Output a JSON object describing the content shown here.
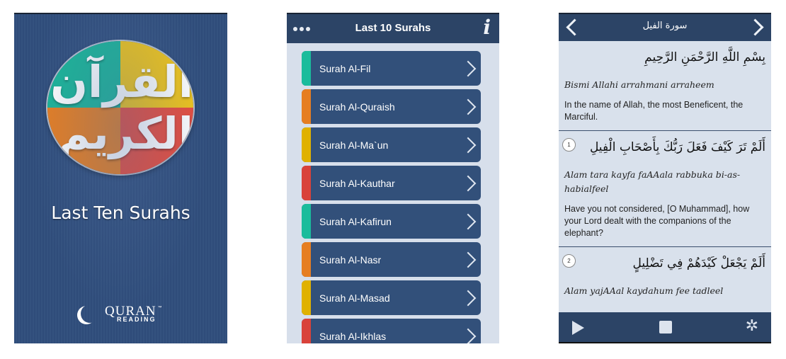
{
  "splash": {
    "title": "Last Ten Surahs",
    "logo_calligraphy": "القرآن الكريم",
    "logo_colors": {
      "top_left": "#1bb497",
      "top_right": "#f0c419",
      "bottom_left": "#e67e22",
      "bottom_right": "#e74c3c"
    },
    "brand": {
      "name": "QURAN",
      "sub": "READING",
      "tm": "™"
    }
  },
  "list_screen": {
    "header": {
      "title": "Last 10 Surahs",
      "menu_icon": "more-dots-icon",
      "info_icon": "info-icon",
      "info_glyph": "i"
    },
    "items": [
      {
        "label": "Surah Al-Fil",
        "color": "#1abc9c"
      },
      {
        "label": "Surah Al-Quraish",
        "color": "#e67e22"
      },
      {
        "label": "Surah Al-Ma`un",
        "color": "#e0b100"
      },
      {
        "label": "Surah Al-Kauthar",
        "color": "#d9423a"
      },
      {
        "label": "Surah Al-Kafirun",
        "color": "#1abc9c"
      },
      {
        "label": "Surah Al-Nasr",
        "color": "#e67e22"
      },
      {
        "label": "Surah Al-Masad",
        "color": "#e0b100"
      },
      {
        "label": "Surah Al-Ikhlas",
        "color": "#d9423a"
      }
    ]
  },
  "reader": {
    "header": {
      "title": "سورة الفيل",
      "prev_icon": "chevron-left-icon",
      "next_icon": "chevron-right-icon"
    },
    "verses": [
      {
        "number": "",
        "arabic": "بِسْمِ اللَّهِ الرَّحْمَنِ الرَّحِيمِ",
        "translit": "Bismi Allahi arrahmani arraheem",
        "translation": "In the name of Allah, the most Beneficent, the Marciful."
      },
      {
        "number": "1",
        "arabic": "أَلَمْ تَرَ كَيْفَ فَعَلَ رَبُّكَ بِأَصْحَابِ الْفِيلِ",
        "translit": "Alam tara kayfa faAAala rabbuka bi-as-habialfeel",
        "translation": "Have you not considered, [O Muhammad], how your Lord dealt with the companions of the elephant?"
      },
      {
        "number": "2",
        "arabic": "أَلَمْ يَجْعَلْ كَيْدَهُمْ فِي تَضْلِيلٍ",
        "translit": "Alam yajAAal kaydahum fee tadleel",
        "translation": ""
      }
    ],
    "controls": {
      "play": "play-icon",
      "stop": "stop-icon",
      "settings": "gear-icon",
      "gear_glyph": "✲"
    }
  }
}
